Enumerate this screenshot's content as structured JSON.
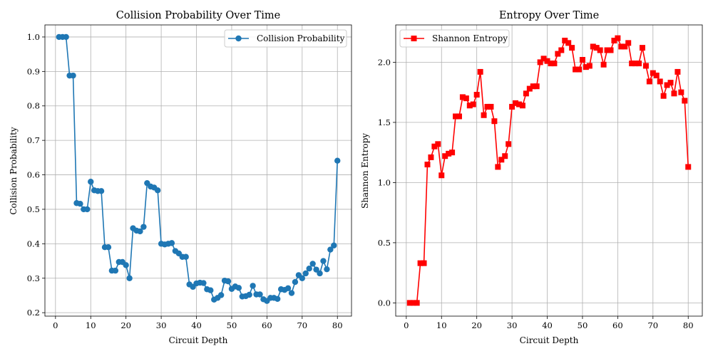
{
  "chart_data": [
    {
      "type": "line",
      "title": "Collision Probability Over Time",
      "xlabel": "Circuit Depth",
      "ylabel": "Collision Probability",
      "xlim": [
        -3,
        84
      ],
      "ylim": [
        0.19,
        1.035
      ],
      "xticks": [
        0,
        10,
        20,
        30,
        40,
        50,
        60,
        70,
        80
      ],
      "yticks": [
        0.2,
        0.3,
        0.4,
        0.5,
        0.6,
        0.7,
        0.8,
        0.9,
        1.0
      ],
      "ytick_decimals": 1,
      "grid": true,
      "legend": "top-right",
      "marker": "circle",
      "series": [
        {
          "name": "Collision Probability",
          "color": "#1f77b4",
          "x": [
            1,
            2,
            3,
            4,
            5,
            6,
            7,
            8,
            9,
            10,
            11,
            12,
            13,
            14,
            15,
            16,
            17,
            18,
            19,
            20,
            21,
            22,
            23,
            24,
            25,
            26,
            27,
            28,
            29,
            30,
            31,
            32,
            33,
            34,
            35,
            36,
            37,
            38,
            39,
            40,
            41,
            42,
            43,
            44,
            45,
            46,
            47,
            48,
            49,
            50,
            51,
            52,
            53,
            54,
            55,
            56,
            57,
            58,
            59,
            60,
            61,
            62,
            63,
            64,
            65,
            66,
            67,
            68,
            69,
            70,
            71,
            72,
            73,
            74,
            75,
            76,
            77,
            78,
            79,
            80
          ],
          "values": [
            1.0,
            1.0,
            1.0,
            0.888,
            0.888,
            0.518,
            0.516,
            0.5,
            0.5,
            0.58,
            0.555,
            0.553,
            0.553,
            0.39,
            0.39,
            0.322,
            0.322,
            0.347,
            0.347,
            0.338,
            0.3,
            0.445,
            0.438,
            0.436,
            0.449,
            0.576,
            0.566,
            0.563,
            0.555,
            0.4,
            0.398,
            0.4,
            0.402,
            0.379,
            0.372,
            0.362,
            0.362,
            0.282,
            0.275,
            0.285,
            0.287,
            0.286,
            0.268,
            0.265,
            0.238,
            0.243,
            0.251,
            0.293,
            0.291,
            0.269,
            0.276,
            0.272,
            0.247,
            0.248,
            0.252,
            0.278,
            0.253,
            0.253,
            0.239,
            0.234,
            0.243,
            0.243,
            0.24,
            0.268,
            0.266,
            0.271,
            0.257,
            0.289,
            0.309,
            0.3,
            0.314,
            0.328,
            0.342,
            0.325,
            0.314,
            0.35,
            0.326,
            0.383,
            0.395,
            0.641
          ]
        }
      ]
    },
    {
      "type": "line",
      "title": "Entropy Over Time",
      "xlabel": "Circuit Depth",
      "ylabel": "Shannon Entropy",
      "xlim": [
        -3,
        84
      ],
      "ylim": [
        -0.11,
        2.31
      ],
      "xticks": [
        0,
        10,
        20,
        30,
        40,
        50,
        60,
        70,
        80
      ],
      "yticks": [
        0.0,
        0.5,
        1.0,
        1.5,
        2.0
      ],
      "ytick_decimals": 1,
      "grid": true,
      "legend": "top-left",
      "marker": "square",
      "series": [
        {
          "name": "Shannon Entropy",
          "color": "#ff0000",
          "x": [
            1,
            2,
            3,
            4,
            5,
            6,
            7,
            8,
            9,
            10,
            11,
            12,
            13,
            14,
            15,
            16,
            17,
            18,
            19,
            20,
            21,
            22,
            23,
            24,
            25,
            26,
            27,
            28,
            29,
            30,
            31,
            32,
            33,
            34,
            35,
            36,
            37,
            38,
            39,
            40,
            41,
            42,
            43,
            44,
            45,
            46,
            47,
            48,
            49,
            50,
            51,
            52,
            53,
            54,
            55,
            56,
            57,
            58,
            59,
            60,
            61,
            62,
            63,
            64,
            65,
            66,
            67,
            68,
            69,
            70,
            71,
            72,
            73,
            74,
            75,
            76,
            77,
            78,
            79,
            80
          ],
          "values": [
            0.0,
            0.0,
            0.0,
            0.33,
            0.33,
            1.15,
            1.21,
            1.3,
            1.32,
            1.06,
            1.22,
            1.24,
            1.25,
            1.55,
            1.55,
            1.71,
            1.7,
            1.64,
            1.65,
            1.73,
            1.92,
            1.56,
            1.63,
            1.63,
            1.51,
            1.13,
            1.19,
            1.22,
            1.32,
            1.63,
            1.66,
            1.65,
            1.64,
            1.74,
            1.78,
            1.8,
            1.8,
            2.0,
            2.03,
            2.01,
            1.99,
            1.99,
            2.07,
            2.1,
            2.18,
            2.16,
            2.12,
            1.94,
            1.94,
            2.02,
            1.96,
            1.97,
            2.13,
            2.12,
            2.1,
            1.98,
            2.1,
            2.1,
            2.18,
            2.2,
            2.13,
            2.13,
            2.16,
            1.99,
            1.99,
            1.99,
            2.12,
            1.97,
            1.84,
            1.91,
            1.89,
            1.84,
            1.72,
            1.81,
            1.83,
            1.74,
            1.92,
            1.75,
            1.68,
            1.13
          ]
        }
      ]
    }
  ]
}
